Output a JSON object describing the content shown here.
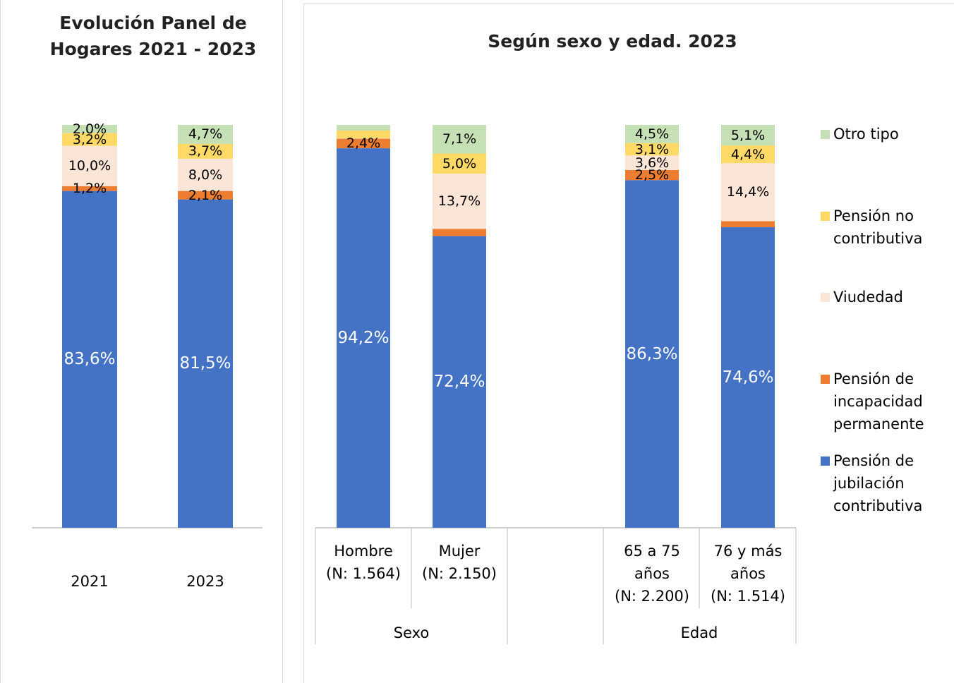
{
  "chart_data": [
    {
      "type": "bar",
      "stacked": true,
      "title": "Evolución Panel de\nHogares 2021 - 2023",
      "categories": [
        "2021",
        "2023"
      ],
      "ylim": [
        0,
        100
      ],
      "series": [
        {
          "color": "#4472c4",
          "values": [
            83.6,
            81.5
          ],
          "value_labels": [
            "83,6%",
            "81,5%"
          ]
        },
        {
          "color": "#ed7d31",
          "values": [
            1.2,
            2.1
          ],
          "value_labels": [
            "1,2%",
            "2,1%"
          ]
        },
        {
          "color": "#fbe5d6",
          "values": [
            10.0,
            8.0
          ],
          "value_labels": [
            "10,0%",
            "8,0%"
          ]
        },
        {
          "color": "#ffd966",
          "values": [
            3.2,
            3.7
          ],
          "value_labels": [
            "3,2%",
            "3,7%"
          ]
        },
        {
          "color": "#c5e0b4",
          "values": [
            2.0,
            4.7
          ],
          "value_labels": [
            "2,0%",
            "4,7%"
          ]
        }
      ]
    },
    {
      "type": "bar",
      "stacked": true,
      "title": "Según sexo y edad. 2023",
      "categories": [
        "Hombre\n(N: 1.564)",
        "Mujer\n(N: 2.150)",
        null,
        "65 a 75\naños\n(N: 2.200)",
        "76 y más\naños\n(N: 1.514)"
      ],
      "groups": [
        "Sexo",
        "Edad"
      ],
      "ylim": [
        0,
        100
      ],
      "legend": "right",
      "series": [
        {
          "name": "Pensión de\njubilación\ncontributiva",
          "color": "#4472c4",
          "values": [
            94.2,
            72.4,
            null,
            86.3,
            74.6
          ],
          "value_labels": [
            "94,2%",
            "72,4%",
            null,
            "86,3%",
            "74,6%"
          ]
        },
        {
          "name": "Pensión de\nincapacidad\npermanente",
          "color": "#ed7d31",
          "values": [
            2.4,
            1.8,
            null,
            2.5,
            1.5
          ],
          "value_labels": [
            "2,4%",
            null,
            null,
            "2,5%",
            null
          ]
        },
        {
          "name": "Viudedad",
          "color": "#fbe5d6",
          "values": [
            0.1,
            13.7,
            null,
            3.6,
            14.4
          ],
          "value_labels": [
            null,
            "13,7%",
            null,
            "3,6%",
            "14,4%"
          ]
        },
        {
          "name": "Pensión no\ncontributiva",
          "color": "#ffd966",
          "values": [
            1.9,
            5.0,
            null,
            3.1,
            4.4
          ],
          "value_labels": [
            null,
            "5,0%",
            null,
            "3,1%",
            "4,4%"
          ]
        },
        {
          "name": "Otro tipo",
          "color": "#c5e0b4",
          "values": [
            1.4,
            7.1,
            null,
            4.5,
            5.1
          ],
          "value_labels": [
            null,
            "7,1%",
            null,
            "4,5%",
            "5,1%"
          ]
        }
      ]
    }
  ]
}
